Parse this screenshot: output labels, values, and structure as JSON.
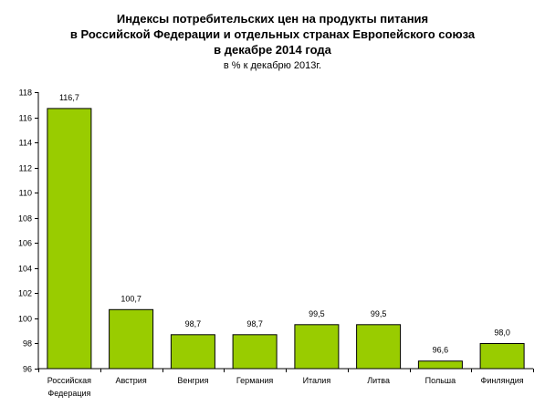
{
  "title": {
    "line1": "Индексы потребительских цен на продукты питания",
    "line2": "в Российской Федерации и отдельных странах Европейского союза",
    "line3": "в декабре 2014 года",
    "subtitle": "в % к декабрю 2013г."
  },
  "chart_data": {
    "type": "bar",
    "title": "Индексы потребительских цен на продукты питания в Российской Федерации и отдельных странах Европейского союза в декабре 2014 года",
    "subtitle": "в % к декабрю 2013г.",
    "categories": [
      [
        "Российская",
        "Федерация"
      ],
      [
        "Австрия"
      ],
      [
        "Венгрия"
      ],
      [
        "Германия"
      ],
      [
        "Италия"
      ],
      [
        "Литва"
      ],
      [
        "Польша"
      ],
      [
        "Финляндия"
      ]
    ],
    "values": [
      116.7,
      100.7,
      98.7,
      98.7,
      99.5,
      99.5,
      96.6,
      98.0
    ],
    "value_labels": [
      "116,7",
      "100,7",
      "98,7",
      "98,7",
      "99,5",
      "99,5",
      "96,6",
      "98,0"
    ],
    "ylim": [
      96,
      118
    ],
    "yticks": [
      96,
      98,
      100,
      102,
      104,
      106,
      108,
      110,
      112,
      114,
      116,
      118
    ],
    "xlabel": "",
    "ylabel": "",
    "grid": false,
    "legend": "none",
    "bar_color": "#99cc00",
    "bar_stroke": "#000000"
  }
}
